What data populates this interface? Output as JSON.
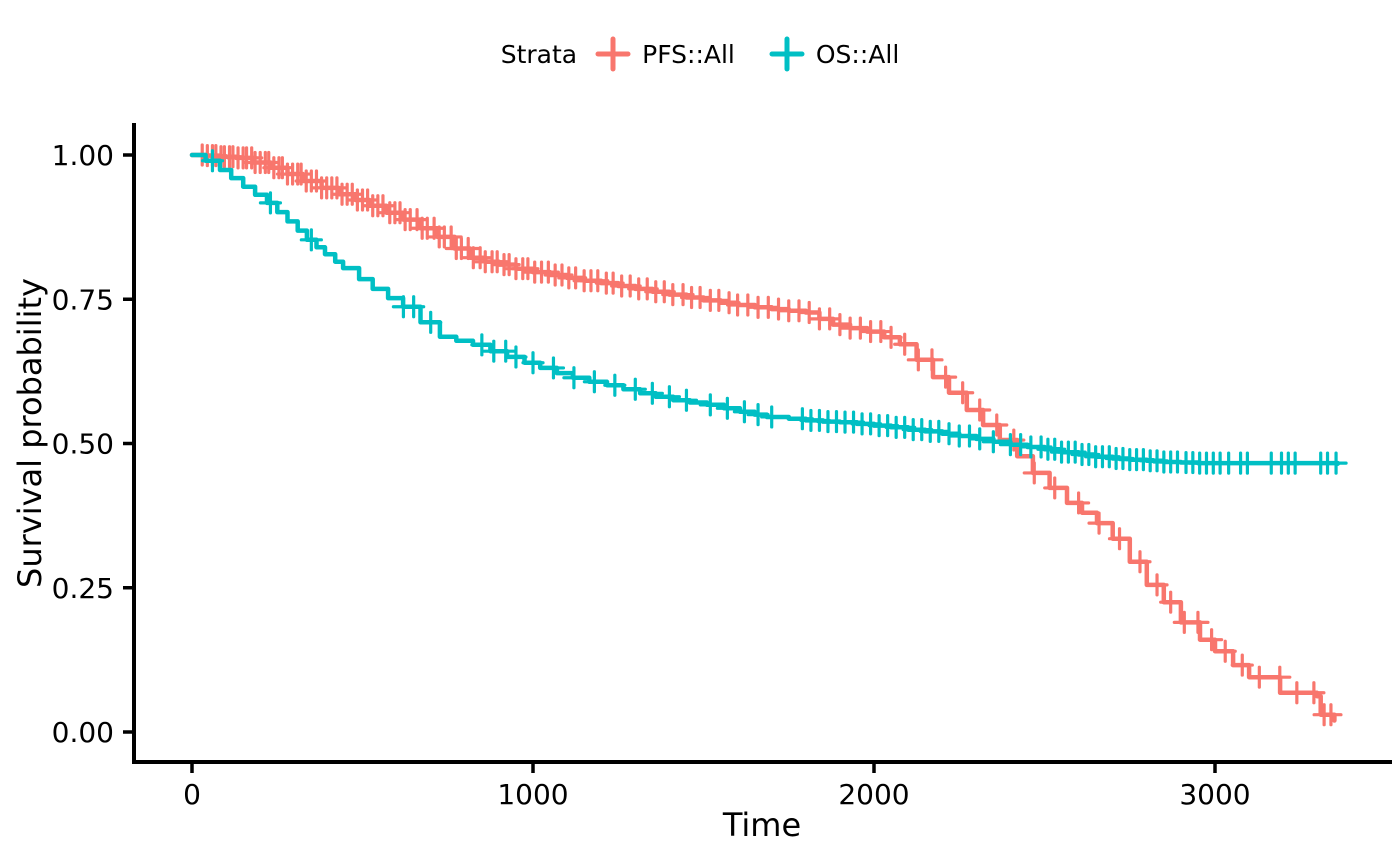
{
  "chart_data": {
    "type": "line",
    "subtype": "kaplan-meier-survival",
    "title": "",
    "xlabel": "Time",
    "ylabel": "Survival probability",
    "legend": {
      "title": "Strata",
      "position": "top"
    },
    "grid": false,
    "xlim": [
      0,
      3400
    ],
    "ylim": [
      0,
      1
    ],
    "x_ticks": [
      {
        "value": 0,
        "label": "0"
      },
      {
        "value": 1000,
        "label": "1000"
      },
      {
        "value": 2000,
        "label": "2000"
      },
      {
        "value": 3000,
        "label": "3000"
      }
    ],
    "y_ticks": [
      {
        "value": 0.0,
        "label": "0.00"
      },
      {
        "value": 0.25,
        "label": "0.25"
      },
      {
        "value": 0.5,
        "label": "0.50"
      },
      {
        "value": 0.75,
        "label": "0.75"
      },
      {
        "value": 1.0,
        "label": "1.00"
      }
    ],
    "series": [
      {
        "name": "PFS::All",
        "color": "#F8766D",
        "points": [
          [
            0,
            1.0
          ],
          [
            40,
            0.999
          ],
          [
            80,
            0.997
          ],
          [
            130,
            0.995
          ],
          [
            180,
            0.987
          ],
          [
            230,
            0.978
          ],
          [
            280,
            0.967
          ],
          [
            325,
            0.955
          ],
          [
            380,
            0.943
          ],
          [
            430,
            0.932
          ],
          [
            480,
            0.922
          ],
          [
            520,
            0.912
          ],
          [
            570,
            0.9
          ],
          [
            620,
            0.888
          ],
          [
            670,
            0.873
          ],
          [
            720,
            0.858
          ],
          [
            770,
            0.838
          ],
          [
            815,
            0.822
          ],
          [
            860,
            0.815
          ],
          [
            900,
            0.81
          ],
          [
            950,
            0.803
          ],
          [
            1000,
            0.797
          ],
          [
            1050,
            0.792
          ],
          [
            1100,
            0.787
          ],
          [
            1150,
            0.782
          ],
          [
            1200,
            0.778
          ],
          [
            1250,
            0.773
          ],
          [
            1300,
            0.768
          ],
          [
            1350,
            0.763
          ],
          [
            1400,
            0.758
          ],
          [
            1450,
            0.753
          ],
          [
            1500,
            0.748
          ],
          [
            1550,
            0.744
          ],
          [
            1600,
            0.74
          ],
          [
            1650,
            0.736
          ],
          [
            1700,
            0.733
          ],
          [
            1750,
            0.73
          ],
          [
            1800,
            0.727
          ],
          [
            1840,
            0.716
          ],
          [
            1880,
            0.706
          ],
          [
            1930,
            0.7
          ],
          [
            1980,
            0.694
          ],
          [
            2030,
            0.684
          ],
          [
            2076,
            0.672
          ],
          [
            2125,
            0.645
          ],
          [
            2173,
            0.615
          ],
          [
            2220,
            0.588
          ],
          [
            2272,
            0.558
          ],
          [
            2320,
            0.532
          ],
          [
            2369,
            0.506
          ],
          [
            2420,
            0.478
          ],
          [
            2466,
            0.449
          ],
          [
            2515,
            0.423
          ],
          [
            2566,
            0.397
          ],
          [
            2610,
            0.38
          ],
          [
            2654,
            0.362
          ],
          [
            2700,
            0.335
          ],
          [
            2750,
            0.295
          ],
          [
            2800,
            0.255
          ],
          [
            2850,
            0.225
          ],
          [
            2900,
            0.19
          ],
          [
            2956,
            0.16
          ],
          [
            3000,
            0.14
          ],
          [
            3053,
            0.116
          ],
          [
            3100,
            0.095
          ],
          [
            3191,
            0.068
          ],
          [
            3299,
            0.062
          ],
          [
            3310,
            0.03
          ],
          [
            3350,
            0.02
          ]
        ],
        "censor_times": [
          30,
          45,
          60,
          70,
          85,
          95,
          110,
          120,
          135,
          150,
          160,
          175,
          185,
          200,
          215,
          225,
          240,
          255,
          265,
          280,
          295,
          310,
          320,
          335,
          350,
          365,
          380,
          395,
          410,
          425,
          440,
          455,
          470,
          485,
          500,
          515,
          530,
          545,
          560,
          580,
          595,
          610,
          625,
          640,
          660,
          675,
          690,
          710,
          725,
          740,
          760,
          775,
          790,
          810,
          825,
          845,
          860,
          880,
          895,
          915,
          930,
          950,
          970,
          985,
          1005,
          1025,
          1045,
          1065,
          1085,
          1105,
          1125,
          1150,
          1170,
          1190,
          1215,
          1235,
          1260,
          1285,
          1310,
          1335,
          1360,
          1385,
          1410,
          1440,
          1465,
          1490,
          1520,
          1545,
          1575,
          1600,
          1630,
          1660,
          1690,
          1720,
          1750,
          1780,
          1810,
          1840,
          1870,
          1900,
          1930,
          1960,
          1990,
          2020,
          2050,
          2090,
          2130,
          2170,
          2210,
          2260,
          2310,
          2360,
          2410,
          2470,
          2530,
          2600,
          2660,
          2720,
          2780,
          2830,
          2870,
          2910,
          2950,
          2990,
          3030,
          3080,
          3130,
          3190,
          3240,
          3290,
          3320,
          3340
        ]
      },
      {
        "name": "OS::All",
        "color": "#00BFC4",
        "points": [
          [
            0,
            1.0
          ],
          [
            40,
            0.99
          ],
          [
            82,
            0.974
          ],
          [
            115,
            0.96
          ],
          [
            150,
            0.945
          ],
          [
            185,
            0.931
          ],
          [
            220,
            0.917
          ],
          [
            250,
            0.901
          ],
          [
            280,
            0.885
          ],
          [
            310,
            0.869
          ],
          [
            337,
            0.853
          ],
          [
            365,
            0.84
          ],
          [
            390,
            0.828
          ],
          [
            420,
            0.815
          ],
          [
            443,
            0.804
          ],
          [
            490,
            0.785
          ],
          [
            530,
            0.768
          ],
          [
            575,
            0.752
          ],
          [
            619,
            0.737
          ],
          [
            670,
            0.71
          ],
          [
            727,
            0.685
          ],
          [
            775,
            0.678
          ],
          [
            824,
            0.671
          ],
          [
            875,
            0.66
          ],
          [
            924,
            0.65
          ],
          [
            975,
            0.64
          ],
          [
            1021,
            0.631
          ],
          [
            1070,
            0.622
          ],
          [
            1117,
            0.614
          ],
          [
            1165,
            0.607
          ],
          [
            1217,
            0.601
          ],
          [
            1265,
            0.594
          ],
          [
            1314,
            0.587
          ],
          [
            1360,
            0.581
          ],
          [
            1411,
            0.575
          ],
          [
            1460,
            0.571
          ],
          [
            1510,
            0.567
          ],
          [
            1560,
            0.561
          ],
          [
            1607,
            0.555
          ],
          [
            1650,
            0.55
          ],
          [
            1686,
            0.546
          ],
          [
            1750,
            0.543
          ],
          [
            1800,
            0.54
          ],
          [
            1850,
            0.538
          ],
          [
            1900,
            0.537
          ],
          [
            1950,
            0.534
          ],
          [
            2000,
            0.531
          ],
          [
            2050,
            0.528
          ],
          [
            2100,
            0.524
          ],
          [
            2150,
            0.521
          ],
          [
            2200,
            0.517
          ],
          [
            2250,
            0.513
          ],
          [
            2300,
            0.508
          ],
          [
            2350,
            0.503
          ],
          [
            2400,
            0.498
          ],
          [
            2450,
            0.494
          ],
          [
            2500,
            0.49
          ],
          [
            2550,
            0.485
          ],
          [
            2600,
            0.481
          ],
          [
            2650,
            0.477
          ],
          [
            2700,
            0.474
          ],
          [
            2750,
            0.472
          ],
          [
            2800,
            0.47
          ],
          [
            2850,
            0.468
          ],
          [
            2900,
            0.467
          ],
          [
            2950,
            0.466
          ],
          [
            3000,
            0.466
          ],
          [
            3360,
            0.465
          ]
        ],
        "censor_times": [
          60,
          230,
          350,
          620,
          650,
          700,
          850,
          885,
          920,
          950,
          1000,
          1060,
          1120,
          1180,
          1240,
          1300,
          1350,
          1400,
          1450,
          1520,
          1570,
          1620,
          1660,
          1700,
          1790,
          1815,
          1840,
          1865,
          1890,
          1915,
          1940,
          1965,
          1990,
          2015,
          2040,
          2065,
          2090,
          2115,
          2140,
          2165,
          2190,
          2220,
          2250,
          2280,
          2310,
          2350,
          2400,
          2430,
          2460,
          2490,
          2510,
          2530,
          2550,
          2570,
          2590,
          2610,
          2630,
          2650,
          2670,
          2690,
          2710,
          2730,
          2750,
          2770,
          2790,
          2810,
          2830,
          2850,
          2870,
          2890,
          2915,
          2935,
          2955,
          2975,
          2995,
          3015,
          3040,
          3075,
          3095,
          3165,
          3195,
          3215,
          3235,
          3310,
          3330,
          3355
        ]
      }
    ]
  }
}
